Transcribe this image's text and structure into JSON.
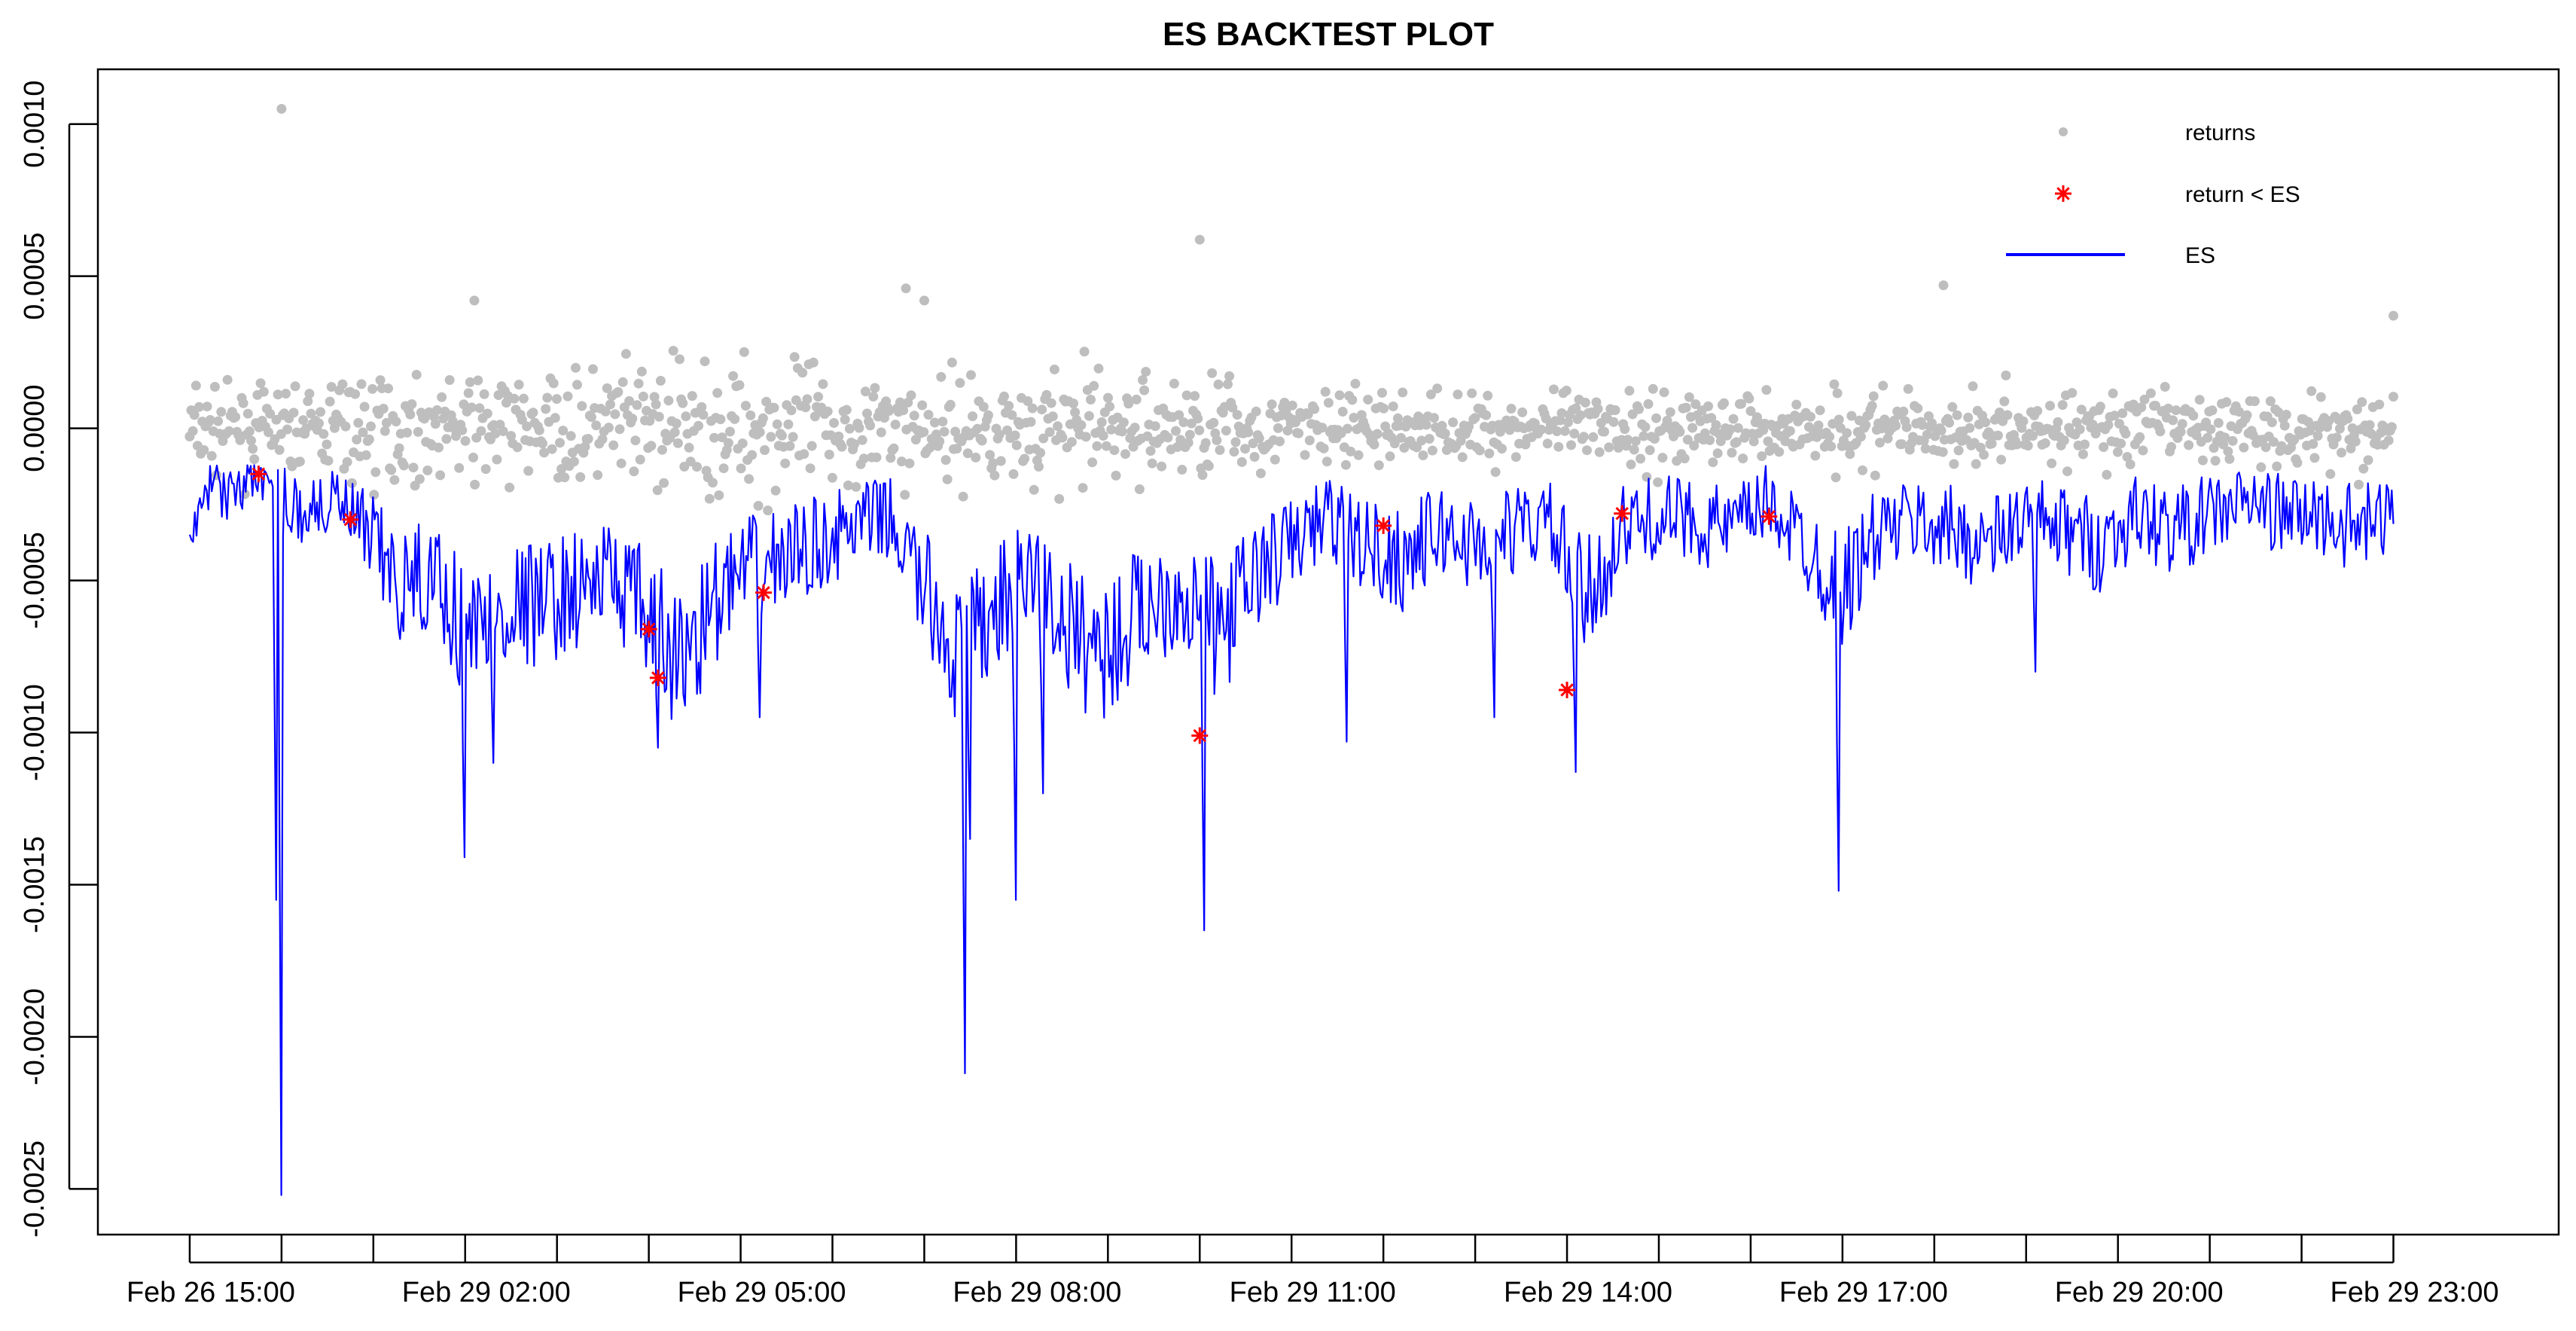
{
  "chart_data": {
    "type": "line",
    "title": "ES BACKTEST PLOT",
    "xlabel": "",
    "ylabel": "",
    "ylim": [
      -0.00265,
      0.00118
    ],
    "grid": false,
    "legend_position": "top-right",
    "x_ticks": {
      "labels": [
        "Feb 26 15:00",
        "Feb 29 02:00",
        "Feb 29 05:00",
        "Feb 29 08:00",
        "Feb 29 11:00",
        "Feb 29 14:00",
        "Feb 29 17:00",
        "Feb 29 20:00",
        "Feb 29 23:00"
      ],
      "positions": [
        0,
        3,
        6,
        9,
        12,
        15,
        18,
        21,
        24
      ],
      "minor_positions": [
        1,
        2,
        4,
        5,
        7,
        8,
        10,
        11,
        13,
        14,
        16,
        17,
        19,
        20,
        22,
        23
      ],
      "range": [
        -1,
        25.8
      ]
    },
    "y_ticks": {
      "values": [
        0.001,
        0.0005,
        0.0,
        -0.0005,
        -0.001,
        -0.0015,
        -0.002,
        -0.0025
      ],
      "labels": [
        "0.0010",
        "0.0005",
        "0.0000",
        "-0.0005",
        "-0.0010",
        "-0.0015",
        "-0.0020",
        "-0.0025"
      ]
    },
    "series": [
      {
        "name": "returns",
        "kind": "points",
        "color": "#bebebe",
        "n_points": 1400,
        "center": 0.0,
        "outliers": [
          [
            1.0,
            0.00105
          ],
          [
            11.0,
            0.00062
          ],
          [
            19.1,
            0.00047
          ],
          [
            8.0,
            0.00042
          ],
          [
            3.1,
            0.00042
          ],
          [
            7.8,
            0.00046
          ],
          [
            24.0,
            0.00037
          ]
        ]
      },
      {
        "name": "ES",
        "kind": "line",
        "color": "#0000ff",
        "x": [
          0,
          0.3,
          0.7,
          1.0,
          1.2,
          1.6,
          2.0,
          2.3,
          2.7,
          3.0,
          3.4,
          3.8,
          4.2,
          4.6,
          5.0,
          5.3,
          5.7,
          6.0,
          6.4,
          6.8,
          7.2,
          7.6,
          8.0,
          8.4,
          8.8,
          9.2,
          9.6,
          10.0,
          10.4,
          10.8,
          11.2,
          11.6,
          12.0,
          12.4,
          12.8,
          13.2,
          13.6,
          14.0,
          14.4,
          14.8,
          15.2,
          15.6,
          16.0,
          16.4,
          16.8,
          17.2,
          17.6,
          18.0,
          18.4,
          18.8,
          19.2,
          19.6,
          20.0,
          20.4,
          20.8,
          21.2,
          21.6,
          22.0,
          22.4,
          22.8,
          23.2,
          23.6,
          24.0
        ],
        "values": [
          -0.00032,
          -0.00022,
          -0.00015,
          -0.00025,
          -0.00028,
          -0.00025,
          -0.0004,
          -0.00055,
          -0.0005,
          -0.0007,
          -0.0006,
          -0.0006,
          -0.00055,
          -0.0005,
          -0.00065,
          -0.0008,
          -0.0006,
          -0.0005,
          -0.00045,
          -0.0004,
          -0.00035,
          -0.0003,
          -0.00055,
          -0.0008,
          -0.0006,
          -0.0005,
          -0.0007,
          -0.00075,
          -0.0006,
          -0.00055,
          -0.0007,
          -0.0005,
          -0.0004,
          -0.0003,
          -0.0004,
          -0.00045,
          -0.00035,
          -0.0004,
          -0.00035,
          -0.00032,
          -0.0006,
          -0.00035,
          -0.0003,
          -0.00032,
          -0.00035,
          -0.00025,
          -0.0004,
          -0.00055,
          -0.00035,
          -0.00032,
          -0.00035,
          -0.0004,
          -0.0003,
          -0.00035,
          -0.0004,
          -0.0003,
          -0.00035,
          -0.0003,
          -0.00025,
          -0.0003,
          -0.0003,
          -0.00035,
          -0.0003
        ],
        "spikes": [
          [
            0.95,
            -0.00155
          ],
          [
            1.0,
            -0.00252
          ],
          [
            3.0,
            -0.00141
          ],
          [
            3.3,
            -0.0011
          ],
          [
            5.1,
            -0.00105
          ],
          [
            6.2,
            -0.00095
          ],
          [
            8.45,
            -0.00212
          ],
          [
            8.5,
            -0.00135
          ],
          [
            9.0,
            -0.00155
          ],
          [
            9.3,
            -0.0012
          ],
          [
            11.05,
            -0.00165
          ],
          [
            12.6,
            -0.00103
          ],
          [
            14.2,
            -0.00095
          ],
          [
            15.1,
            -0.00113
          ],
          [
            17.95,
            -0.00152
          ],
          [
            20.1,
            -0.0008
          ]
        ]
      },
      {
        "name": "return < ES",
        "kind": "markers",
        "color": "#ff0000",
        "x": [
          0.75,
          1.75,
          5.0,
          5.1,
          6.25,
          11.0,
          13.0,
          15.0,
          15.6,
          17.2
        ],
        "values": [
          -0.00015,
          -0.0003,
          -0.00066,
          -0.00082,
          -0.00054,
          -0.00101,
          -0.00032,
          -0.00086,
          -0.00028,
          -0.00029
        ]
      }
    ]
  }
}
